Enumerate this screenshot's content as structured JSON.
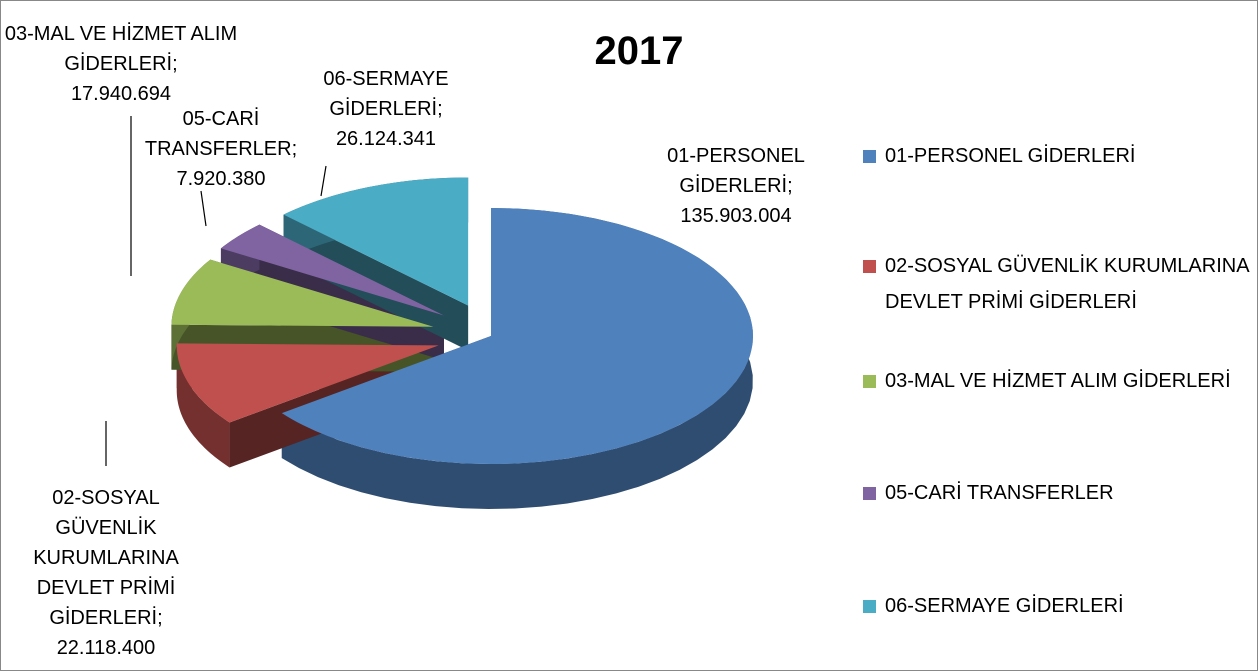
{
  "chart_data": {
    "type": "pie3d",
    "title": "2017",
    "categories": [
      "01-PERSONEL GİDERLERİ",
      "02-SOSYAL GÜVENLİK KURUMLARINA DEVLET PRİMİ GİDERLERİ",
      "03-MAL VE HİZMET ALIM GİDERLERİ",
      "05-CARİ TRANSFERLER",
      "06-SERMAYE GİDERLERİ"
    ],
    "values": [
      135903004,
      22118400,
      17940694,
      7920380,
      26124341
    ],
    "value_labels": [
      "135.903.004",
      "22.118.400",
      "17.940.694",
      "7.920.380",
      "26.124.341"
    ],
    "label_separator": ";",
    "colors": [
      "#4f81bd",
      "#c0504d",
      "#9bbb59",
      "#8064a2",
      "#4bacc6"
    ],
    "legend": "right"
  }
}
